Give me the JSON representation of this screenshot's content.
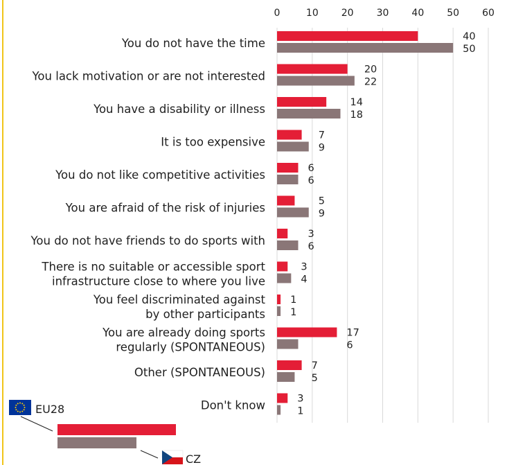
{
  "chart_data": {
    "type": "bar",
    "orientation": "horizontal",
    "categories": [
      [
        "You do not have the time"
      ],
      [
        "You lack motivation or are not interested"
      ],
      [
        "You have a disability or illness"
      ],
      [
        "It is too expensive"
      ],
      [
        "You do not like competitive activities"
      ],
      [
        "You are afraid of the risk of injuries"
      ],
      [
        "You do not have friends to do sports with"
      ],
      [
        "There is no suitable or accessible sport",
        "infrastructure close to where you live"
      ],
      [
        "You feel discriminated against",
        "by other participants"
      ],
      [
        "You are already doing sports",
        "regularly (SPONTANEOUS)"
      ],
      [
        "Other (SPONTANEOUS)"
      ],
      [
        "Don't know"
      ]
    ],
    "series": [
      {
        "name": "EU28",
        "color": "#e41e36",
        "values": [
          40,
          20,
          14,
          7,
          6,
          5,
          3,
          3,
          1,
          17,
          7,
          3
        ]
      },
      {
        "name": "CZ",
        "color": "#8a7677",
        "values": [
          50,
          22,
          18,
          9,
          6,
          9,
          6,
          4,
          1,
          6,
          5,
          1
        ]
      }
    ],
    "xticks": [
      0,
      10,
      20,
      30,
      40,
      50,
      60
    ],
    "xlim": [
      0,
      60
    ],
    "grid": true,
    "legend": "bottom-left",
    "legend_icons": [
      "eu-flag-icon",
      "czech-flag-icon"
    ]
  }
}
